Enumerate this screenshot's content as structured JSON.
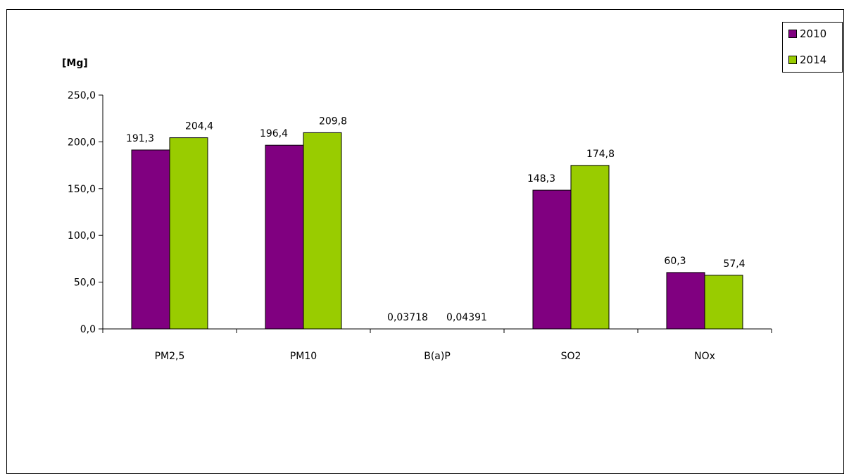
{
  "chart_data": {
    "type": "bar",
    "unit_label": "[Mg]",
    "categories": [
      "PM2,5",
      "PM10",
      "B(a)P",
      "SO2",
      "NOx"
    ],
    "series": [
      {
        "name": "2010",
        "color": "#800080",
        "values": [
          191.3,
          196.4,
          0.03718,
          148.3,
          60.3
        ],
        "labels": [
          "191,3",
          "196,4",
          "0,03718",
          "148,3",
          "60,3"
        ]
      },
      {
        "name": "2014",
        "color": "#99cc00",
        "values": [
          204.4,
          209.8,
          0.04391,
          174.8,
          57.4
        ],
        "labels": [
          "204,4",
          "209,8",
          "0,04391",
          "174,8",
          "57,4"
        ]
      }
    ],
    "ylim": [
      0,
      250
    ],
    "yticks": [
      "0,0",
      "50,0",
      "100,0",
      "150,0",
      "200,0",
      "250,0"
    ],
    "grid": false,
    "legend_position": "top-right"
  }
}
